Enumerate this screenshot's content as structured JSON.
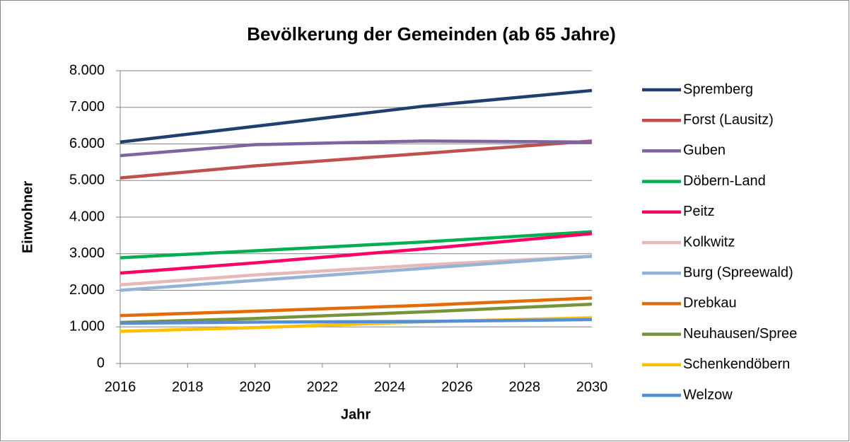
{
  "chart_data": {
    "type": "line",
    "title": "Bevölkerung der Gemeinden (ab 65 Jahre)",
    "x_label": "Jahr",
    "y_label": "Einwohner",
    "x": [
      2016,
      2020,
      2025,
      2030
    ],
    "xlim": [
      2016,
      2030
    ],
    "xticks": [
      2016,
      2018,
      2020,
      2022,
      2024,
      2026,
      2028,
      2030
    ],
    "ylim": [
      0,
      8000
    ],
    "yticks": [
      0,
      {
        "value": 1000,
        "label": "1.000"
      },
      {
        "value": 2000,
        "label": "2.000"
      },
      {
        "value": 3000,
        "label": "3.000"
      },
      {
        "value": 4000,
        "label": "4.000"
      },
      {
        "value": 5000,
        "label": "5.000"
      },
      {
        "value": 6000,
        "label": "6.000"
      },
      {
        "value": 7000,
        "label": "7.000"
      },
      {
        "value": 8000,
        "label": "8.000"
      }
    ],
    "grid": true,
    "legend": "right",
    "series": [
      {
        "name": "Spremberg",
        "color": "#1f3f6e",
        "values": [
          6050,
          6480,
          7030,
          7460
        ]
      },
      {
        "name": "Forst (Lausitz)",
        "color": "#c0504d",
        "values": [
          5070,
          5400,
          5740,
          6080
        ]
      },
      {
        "name": "Guben",
        "color": "#8064a2",
        "values": [
          5680,
          5980,
          6080,
          6050
        ]
      },
      {
        "name": "Döbern-Land",
        "color": "#00b050",
        "values": [
          2890,
          3080,
          3320,
          3600
        ]
      },
      {
        "name": "Peitz",
        "color": "#ff0066",
        "values": [
          2470,
          2750,
          3130,
          3550
        ]
      },
      {
        "name": "Kolkwitz",
        "color": "#e6b9b8",
        "values": [
          2150,
          2420,
          2690,
          2930
        ]
      },
      {
        "name": "Burg (Spreewald)",
        "color": "#95b3d7",
        "values": [
          2000,
          2270,
          2600,
          2930
        ]
      },
      {
        "name": "Drebkau",
        "color": "#e36c09",
        "values": [
          1310,
          1430,
          1590,
          1790
        ]
      },
      {
        "name": "Neuhausen/Spree",
        "color": "#77933c",
        "values": [
          1120,
          1230,
          1410,
          1620
        ]
      },
      {
        "name": "Schenkendöbern",
        "color": "#ffc000",
        "values": [
          880,
          980,
          1140,
          1250
        ]
      },
      {
        "name": "Welzow",
        "color": "#558ed5",
        "values": [
          1100,
          1130,
          1150,
          1200
        ]
      }
    ]
  }
}
